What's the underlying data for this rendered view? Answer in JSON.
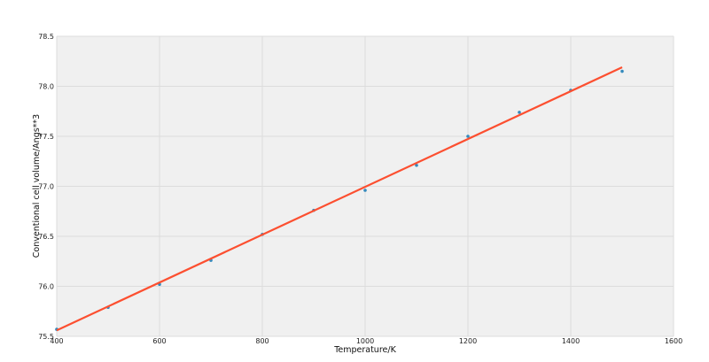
{
  "chart_data": {
    "type": "scatter",
    "title": "",
    "xlabel": "Temperature/K",
    "ylabel": "Conventional cell volume/Angs**3",
    "xlim": [
      400,
      1600
    ],
    "ylim": [
      75.5,
      78.5
    ],
    "xticks": [
      "400",
      "600",
      "800",
      "1000",
      "1200",
      "1400",
      "1600"
    ],
    "yticks": [
      "75.5",
      "76.0",
      "76.5",
      "77.0",
      "77.5",
      "78.0",
      "78.5"
    ],
    "grid": true,
    "background": "#f0f0f0",
    "series": [
      {
        "kind": "scatter",
        "color": "#348abd",
        "x": [
          400,
          500,
          600,
          700,
          800,
          900,
          1000,
          1100,
          1200,
          1300,
          1400,
          1500
        ],
        "y": [
          75.57,
          75.79,
          76.02,
          76.26,
          76.52,
          76.76,
          76.96,
          77.21,
          77.5,
          77.74,
          77.96,
          78.15
        ]
      },
      {
        "kind": "line",
        "color": "#fc4f30",
        "x": [
          400,
          1500
        ],
        "y": [
          75.56,
          78.19
        ]
      }
    ]
  }
}
